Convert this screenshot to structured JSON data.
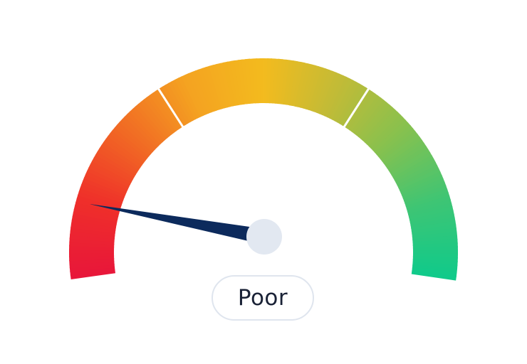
{
  "gauge": {
    "rating_label": "Poor",
    "score": 0.095,
    "segments": 3,
    "colors": {
      "gradient": [
        "#e8163a",
        "#ef2f2a",
        "#f16a24",
        "#f4a321",
        "#f3bb1e",
        "#c1bb37",
        "#86c14f",
        "#3ec574",
        "#10ca8a"
      ],
      "needle": "#0c2a5c",
      "hub": "#e2e8f1",
      "badge_border": "#dfe5ee",
      "label_text": "#1a2236"
    }
  }
}
